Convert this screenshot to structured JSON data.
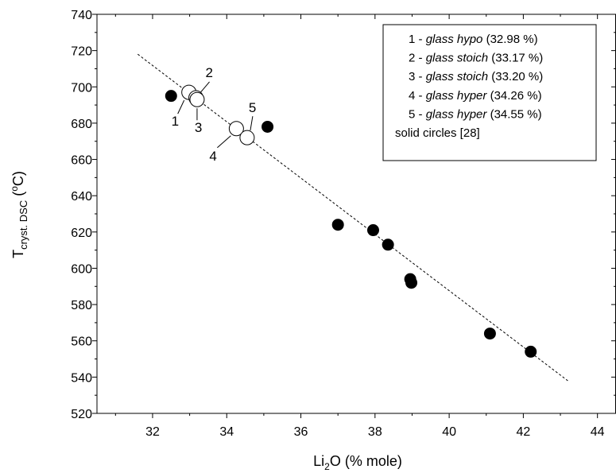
{
  "chart_data": {
    "type": "scatter",
    "xlabel": {
      "main": "Li",
      "sub": "2",
      "rest": "O (% mole)"
    },
    "ylabel": {
      "main": "T",
      "sub": "cryst. DSC",
      "rest": " (",
      "sup": "o",
      "end": "C)"
    },
    "xlim": [
      30.5,
      44.5
    ],
    "ylim": [
      520,
      740
    ],
    "xticks": [
      "32",
      "34",
      "36",
      "38",
      "40",
      "42",
      "44"
    ],
    "yticks": [
      "520",
      "540",
      "560",
      "580",
      "600",
      "620",
      "640",
      "660",
      "680",
      "700",
      "720",
      "740"
    ],
    "series": [
      {
        "marker": "open-circle",
        "points": [
          {
            "x": 32.98,
            "y": 697,
            "label": "1"
          },
          {
            "x": 33.17,
            "y": 694,
            "label": "2"
          },
          {
            "x": 33.2,
            "y": 693,
            "label": "3"
          },
          {
            "x": 34.26,
            "y": 677,
            "label": "4"
          },
          {
            "x": 34.55,
            "y": 672,
            "label": "5"
          }
        ]
      },
      {
        "marker": "filled-circle",
        "points": [
          {
            "x": 32.5,
            "y": 695
          },
          {
            "x": 35.1,
            "y": 678
          },
          {
            "x": 37.0,
            "y": 624
          },
          {
            "x": 37.95,
            "y": 621
          },
          {
            "x": 38.35,
            "y": 613
          },
          {
            "x": 38.95,
            "y": 594
          },
          {
            "x": 38.98,
            "y": 592
          },
          {
            "x": 41.1,
            "y": 564
          },
          {
            "x": 42.2,
            "y": 554
          }
        ]
      }
    ],
    "fit_line": {
      "style": "dashed",
      "x": [
        31.6,
        43.2
      ],
      "y": [
        718,
        538
      ]
    },
    "legend": {
      "position": "top-right",
      "entries": [
        {
          "num": "1 - ",
          "name": "glass hypo",
          "pct": " (32.98 %)"
        },
        {
          "num": "2 - ",
          "name": "glass stoich",
          "pct": " (33.17 %)"
        },
        {
          "num": "3 - ",
          "name": "glass stoich",
          "pct": " (33.20 %)"
        },
        {
          "num": "4 - ",
          "name": "glass hyper",
          "pct": " (34.26 %)"
        },
        {
          "num": "5 - ",
          "name": "glass hyper",
          "pct": " (34.55 %)"
        },
        {
          "num": "",
          "name": "",
          "pct": "solid circles [28]"
        }
      ]
    }
  }
}
